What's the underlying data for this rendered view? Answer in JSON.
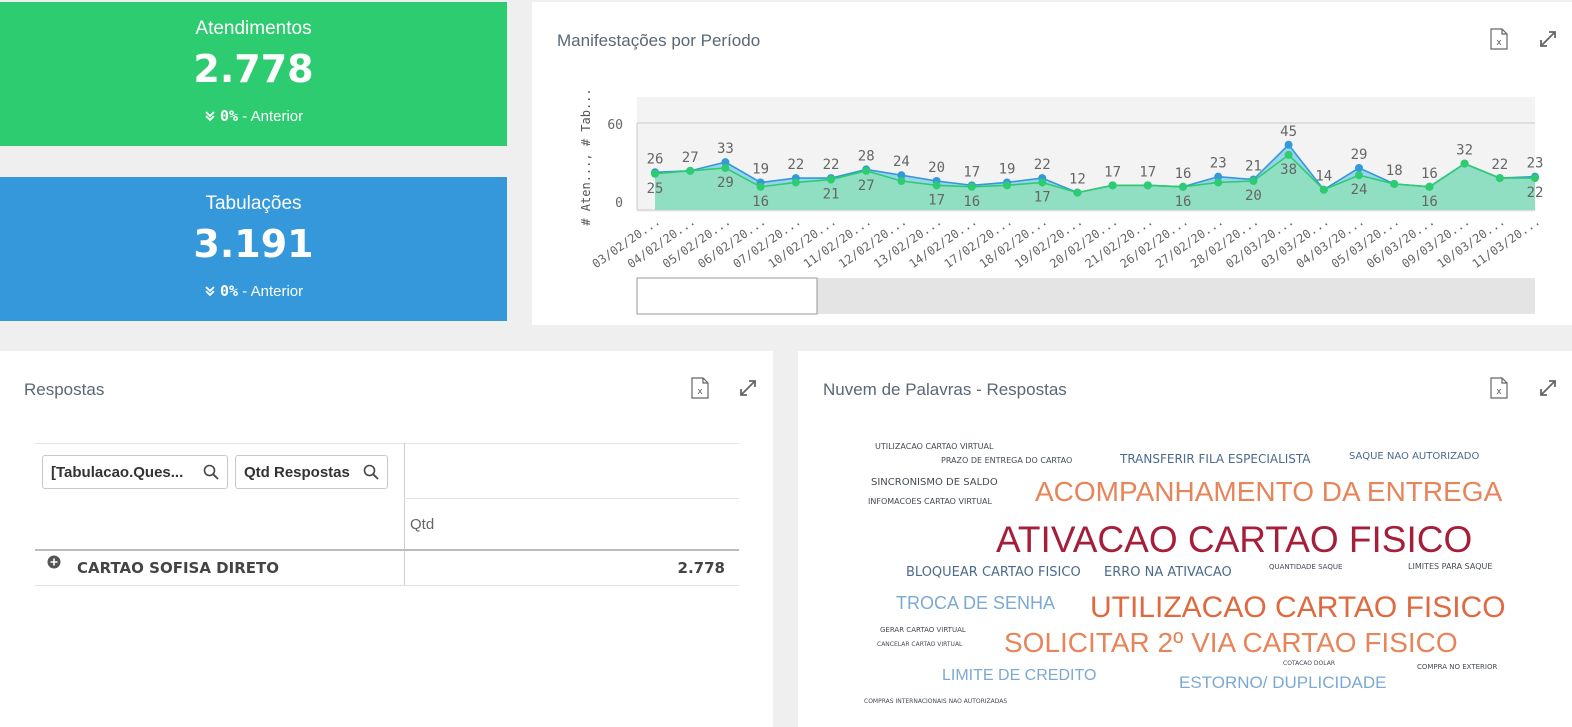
{
  "kpis": {
    "atendimentos": {
      "title": "Atendimentos",
      "value": "2.778",
      "change": "0%",
      "change_label": " - Anterior",
      "arrow": "»"
    },
    "tabulacoes": {
      "title": "Tabulações",
      "value": "3.191",
      "change": "0%",
      "change_label": " - Anterior",
      "arrow": "»"
    }
  },
  "period_panel": {
    "title": "Manifestações por Período",
    "export_icon": "excel-export-icon",
    "expand_icon": "expand-icon"
  },
  "chart_data": {
    "type": "area",
    "title": "Manifestações por Período",
    "ylabel": "# Aten..., # Tab...",
    "yticks": [
      "60",
      "0"
    ],
    "ylim": [
      0,
      60
    ],
    "categories": [
      "03/02/20...",
      "04/02/20...",
      "05/02/20...",
      "06/02/20...",
      "07/02/20...",
      "10/02/20...",
      "11/02/20...",
      "12/02/20...",
      "13/02/20...",
      "14/02/20...",
      "17/02/20...",
      "18/02/20...",
      "19/02/20...",
      "20/02/20...",
      "21/02/20...",
      "26/02/20...",
      "27/02/20...",
      "28/02/20...",
      "02/03/20...",
      "03/03/20...",
      "04/03/20...",
      "05/03/20...",
      "06/03/20...",
      "09/03/20...",
      "10/03/20...",
      "11/03/20..."
    ],
    "series": [
      {
        "name": "# Tab...",
        "color": "#3498db",
        "values": [
          26,
          27,
          33,
          19,
          22,
          22,
          28,
          24,
          20,
          17,
          19,
          22,
          12,
          17,
          17,
          16,
          23,
          21,
          45,
          14,
          29,
          18,
          16,
          32,
          22,
          23
        ]
      },
      {
        "name": "# Aten...",
        "color": "#2ecc71",
        "values": [
          25,
          27,
          29,
          16,
          19,
          21,
          27,
          20,
          17,
          16,
          17,
          19,
          12,
          17,
          17,
          16,
          19,
          20,
          38,
          14,
          24,
          18,
          16,
          32,
          22,
          22
        ]
      }
    ],
    "top_labels": [
      "26",
      "27",
      "33",
      "19",
      "22",
      "22",
      "28",
      "24",
      "20",
      "17",
      "19",
      "22",
      "12",
      "17",
      "17",
      "16",
      "23",
      "21",
      "45",
      "14",
      "29",
      "18",
      "16",
      "32",
      "22",
      "23"
    ],
    "bottom_labels": [
      "25",
      "",
      "29",
      "16",
      "",
      "21",
      "27",
      "",
      "17",
      "16",
      "",
      "17",
      "",
      "",
      "",
      "16",
      "",
      "20",
      "38",
      "",
      "24",
      "",
      "16",
      "",
      "",
      "22"
    ]
  },
  "respostas_panel": {
    "title": "Respostas",
    "search_fields": [
      "[Tabulacao.Ques...",
      "Qtd Respostas"
    ],
    "measure_header": "Qtd",
    "rows": [
      {
        "expand": "⊕",
        "label": "CARTAO SOFISA DIRETO",
        "value": "2.778"
      }
    ]
  },
  "cloud_panel": {
    "title": "Nuvem de Palavras - Respostas",
    "words": [
      {
        "text": "UTILIZACAO CARTAO VIRTUAL",
        "size": 8,
        "color": "#444a55"
      },
      {
        "text": "PRAZO DE ENTREGA DO CARTAO",
        "size": 8,
        "color": "#444a55"
      },
      {
        "text": "TRANSFERIR FILA ESPECIALISTA",
        "size": 12,
        "color": "#4a6a8e"
      },
      {
        "text": "SAQUE NAO AUTORIZADO",
        "size": 10,
        "color": "#4a6a8e"
      },
      {
        "text": "SINCRONISMO DE SALDO",
        "size": 10,
        "color": "#444a55"
      },
      {
        "text": "ACOMPANHAMENTO DA ENTREGA",
        "size": 28,
        "color": "#e8845a"
      },
      {
        "text": "INFOMACOES CARTAO VIRTUAL",
        "size": 8,
        "color": "#444a55"
      },
      {
        "text": "ATIVACAO CARTAO FISICO",
        "size": 37,
        "color": "#a51e3a"
      },
      {
        "text": "BLOQUEAR CARTAO FISICO",
        "size": 13,
        "color": "#4a6a8e"
      },
      {
        "text": "ERRO NA ATIVACAO",
        "size": 13,
        "color": "#4a6a8e"
      },
      {
        "text": "QUANTIDADE SAQUE",
        "size": 7,
        "color": "#444a55"
      },
      {
        "text": "LIMITES PARA SAQUE",
        "size": 8,
        "color": "#444a55"
      },
      {
        "text": "TROCA DE SENHA",
        "size": 18,
        "color": "#7ba9d3"
      },
      {
        "text": "UTILIZACAO CARTAO FISICO",
        "size": 30,
        "color": "#e06a3f"
      },
      {
        "text": "GERAR CARTAO VIRTUAL",
        "size": 7,
        "color": "#444a55"
      },
      {
        "text": "CANCELAR CARTAO VIRTUAL",
        "size": 6,
        "color": "#444a55"
      },
      {
        "text": "SOLICITAR 2º VIA CARTAO FISICO",
        "size": 28,
        "color": "#e8845a"
      },
      {
        "text": "COTACAO DOLAR",
        "size": 6,
        "color": "#444a55"
      },
      {
        "text": "COMPRA NO EXTERIOR",
        "size": 7,
        "color": "#444a55"
      },
      {
        "text": "LIMITE DE CREDITO",
        "size": 16,
        "color": "#7ba9d3"
      },
      {
        "text": "ESTORNO/ DUPLICIDADE",
        "size": 17,
        "color": "#7ba9d3"
      },
      {
        "text": "COMPRAS INTERNACIONAIS NAO AUTORIZADAS",
        "size": 6,
        "color": "#444a55"
      }
    ]
  }
}
